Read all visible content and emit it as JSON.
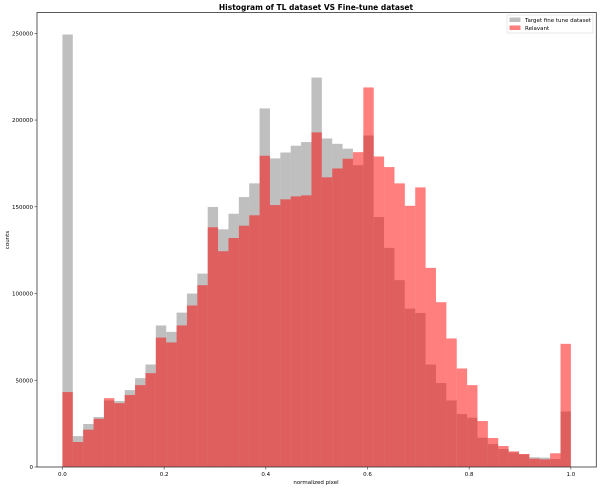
{
  "chart_data": {
    "type": "bar",
    "title": "Histogram of TL dataset VS Fine-tune dataset",
    "xlabel": "normalized pixel",
    "ylabel": "counts",
    "xlim": [
      -0.05,
      1.05
    ],
    "ylim": [
      0,
      262000
    ],
    "xticks": [
      0.0,
      0.2,
      0.4,
      0.6,
      0.8,
      1.0
    ],
    "xtick_labels": [
      "0.0",
      "0.2",
      "0.4",
      "0.6",
      "0.8",
      "1.0"
    ],
    "yticks": [
      0,
      50000,
      100000,
      150000,
      200000,
      250000
    ],
    "ytick_labels": [
      "0",
      "50000",
      "100000",
      "150000",
      "200000",
      "250000"
    ],
    "grid": false,
    "legend_placement": "top-right",
    "bin_range": [
      0,
      1
    ],
    "bins": 49,
    "series": [
      {
        "name": "Target fine tune dataset",
        "color": "#808080",
        "alpha": 0.5,
        "values": [
          249300,
          17800,
          24800,
          28800,
          38400,
          38000,
          44300,
          51200,
          59100,
          81600,
          77900,
          89000,
          100000,
          111500,
          149900,
          137000,
          146000,
          155600,
          163500,
          206700,
          177900,
          181300,
          185200,
          187300,
          224500,
          189400,
          186300,
          183500,
          174000,
          191100,
          144100,
          126300,
          107700,
          91300,
          88800,
          59100,
          48400,
          38400,
          30500,
          28400,
          16900,
          13200,
          10400,
          8400,
          7300,
          5600,
          5400,
          4600,
          32000
        ]
      },
      {
        "name": "Relavant",
        "color": "#ff0000",
        "alpha": 0.5,
        "values": [
          43200,
          14400,
          21500,
          27800,
          39700,
          36800,
          41500,
          47200,
          54100,
          74600,
          71800,
          81600,
          93100,
          104800,
          138200,
          124400,
          132000,
          139100,
          145100,
          179400,
          151000,
          154300,
          156000,
          156600,
          192900,
          167000,
          172100,
          177700,
          181500,
          218800,
          179000,
          172900,
          163500,
          150600,
          161200,
          114800,
          95000,
          74100,
          56800,
          47200,
          26500,
          16700,
          12100,
          9000,
          7500,
          4800,
          4400,
          7900,
          71000
        ]
      }
    ]
  }
}
